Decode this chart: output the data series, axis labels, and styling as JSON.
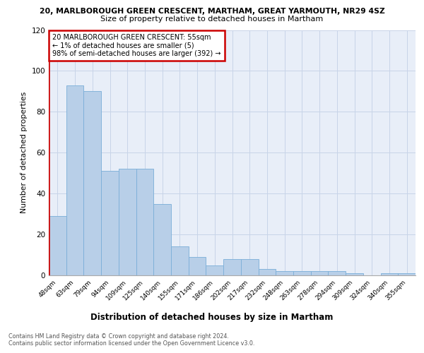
{
  "title_top": "20, MARLBOROUGH GREEN CRESCENT, MARTHAM, GREAT YARMOUTH, NR29 4SZ",
  "title_sub": "Size of property relative to detached houses in Martham",
  "xlabel": "Distribution of detached houses by size in Martham",
  "ylabel": "Number of detached properties",
  "categories": [
    "48sqm",
    "63sqm",
    "79sqm",
    "94sqm",
    "109sqm",
    "125sqm",
    "140sqm",
    "155sqm",
    "171sqm",
    "186sqm",
    "202sqm",
    "217sqm",
    "232sqm",
    "248sqm",
    "263sqm",
    "278sqm",
    "294sqm",
    "309sqm",
    "324sqm",
    "340sqm",
    "355sqm"
  ],
  "values": [
    29,
    93,
    90,
    51,
    52,
    52,
    35,
    14,
    9,
    5,
    8,
    8,
    3,
    2,
    2,
    2,
    2,
    1,
    0,
    1,
    1
  ],
  "bar_color": "#b8cfe8",
  "bar_edge_color": "#7aaed8",
  "highlight_color": "#cc0000",
  "annotation_text": "20 MARLBOROUGH GREEN CRESCENT: 55sqm\n← 1% of detached houses are smaller (5)\n98% of semi-detached houses are larger (392) →",
  "ylim": [
    0,
    120
  ],
  "yticks": [
    0,
    20,
    40,
    60,
    80,
    100,
    120
  ],
  "footnote1": "Contains HM Land Registry data © Crown copyright and database right 2024.",
  "footnote2": "Contains public sector information licensed under the Open Government Licence v3.0.",
  "plot_bg_color": "#e8eef8"
}
